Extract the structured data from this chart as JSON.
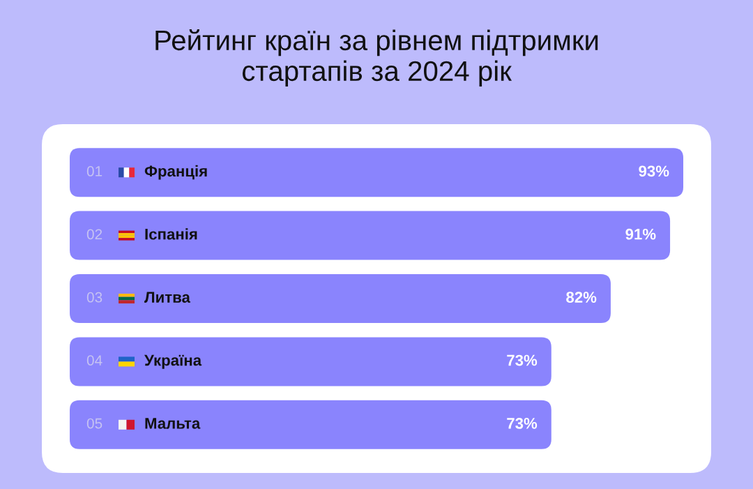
{
  "chart_data": {
    "type": "bar",
    "orientation": "horizontal",
    "title": "Рейтинг країн за рівнем підтримки\nстартапів за 2024 рік",
    "categories": [
      "Франція",
      "Іспанія",
      "Литва",
      "Україна",
      "Мальта"
    ],
    "values": [
      93,
      91,
      82,
      73,
      73
    ],
    "value_labels": [
      "93%",
      "91%",
      "82%",
      "73%",
      "73%"
    ],
    "color": "#8a84fd",
    "tick_labels": false,
    "annotations": [
      "01",
      "02",
      "03",
      "04",
      "05"
    ]
  }
}
